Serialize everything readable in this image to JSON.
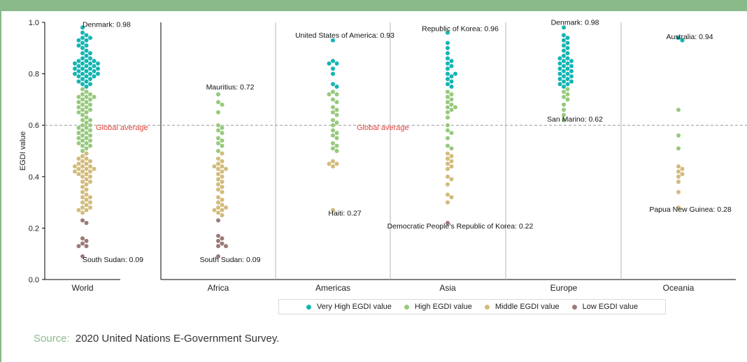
{
  "colors": {
    "frame": "#8aba8a",
    "very_high": "#12b5b3",
    "high": "#97c97d",
    "middle": "#d2bb7c",
    "low": "#9b7a78",
    "global_line": "#999999",
    "global_text": "#e0443e",
    "source_label": "#8aba8a"
  },
  "source": {
    "label": "Source:",
    "text": "2020 United Nations E-Government Survey."
  },
  "chart_data": {
    "type": "scatter",
    "subtype": "beeswarm",
    "ylabel": "EGDI value",
    "ylim": [
      0,
      1
    ],
    "yticks": [
      "0.0",
      "0.2",
      "0.4",
      "0.6",
      "0.8",
      "1.0"
    ],
    "global_average": {
      "value": 0.6,
      "label": "Global average"
    },
    "legend": [
      {
        "key": "very_high",
        "label": "Very High EGDI value"
      },
      {
        "key": "high",
        "label": "High EGDI value"
      },
      {
        "key": "middle",
        "label": "Middle EGDI value"
      },
      {
        "key": "low",
        "label": "Low EGDI value"
      }
    ],
    "groups": [
      {
        "name": "World",
        "values": [
          0.98,
          0.96,
          0.95,
          0.94,
          0.94,
          0.93,
          0.93,
          0.92,
          0.91,
          0.91,
          0.9,
          0.89,
          0.88,
          0.88,
          0.87,
          0.86,
          0.86,
          0.85,
          0.85,
          0.85,
          0.84,
          0.84,
          0.84,
          0.84,
          0.83,
          0.83,
          0.83,
          0.82,
          0.82,
          0.82,
          0.82,
          0.81,
          0.81,
          0.81,
          0.8,
          0.8,
          0.8,
          0.8,
          0.79,
          0.79,
          0.79,
          0.78,
          0.78,
          0.77,
          0.77,
          0.76,
          0.76,
          0.75,
          0.74,
          0.73,
          0.72,
          0.72,
          0.71,
          0.71,
          0.71,
          0.7,
          0.7,
          0.69,
          0.69,
          0.68,
          0.68,
          0.67,
          0.67,
          0.66,
          0.66,
          0.65,
          0.65,
          0.64,
          0.63,
          0.62,
          0.62,
          0.61,
          0.6,
          0.6,
          0.59,
          0.59,
          0.58,
          0.58,
          0.57,
          0.57,
          0.56,
          0.56,
          0.55,
          0.55,
          0.54,
          0.54,
          0.53,
          0.53,
          0.52,
          0.52,
          0.51,
          0.5,
          0.49,
          0.48,
          0.47,
          0.47,
          0.46,
          0.46,
          0.45,
          0.45,
          0.44,
          0.44,
          0.44,
          0.43,
          0.43,
          0.43,
          0.42,
          0.42,
          0.42,
          0.41,
          0.41,
          0.4,
          0.4,
          0.39,
          0.38,
          0.38,
          0.37,
          0.36,
          0.35,
          0.34,
          0.33,
          0.32,
          0.32,
          0.31,
          0.3,
          0.3,
          0.29,
          0.28,
          0.28,
          0.27,
          0.27,
          0.26,
          0.23,
          0.22,
          0.16,
          0.15,
          0.14,
          0.13,
          0.13,
          0.09
        ],
        "annotations": [
          {
            "text": "Denmark: 0.98",
            "value": 0.98,
            "side": "top"
          },
          {
            "text": "South Sudan: 0.09",
            "value": 0.09,
            "side": "bottom"
          }
        ]
      },
      {
        "name": "Africa",
        "values": [
          0.72,
          0.69,
          0.68,
          0.65,
          0.6,
          0.59,
          0.58,
          0.57,
          0.55,
          0.54,
          0.53,
          0.52,
          0.5,
          0.49,
          0.47,
          0.46,
          0.45,
          0.44,
          0.44,
          0.43,
          0.43,
          0.42,
          0.41,
          0.4,
          0.39,
          0.38,
          0.37,
          0.36,
          0.35,
          0.34,
          0.32,
          0.31,
          0.3,
          0.29,
          0.28,
          0.28,
          0.27,
          0.27,
          0.26,
          0.25,
          0.23,
          0.17,
          0.16,
          0.15,
          0.14,
          0.13,
          0.13,
          0.09
        ],
        "annotations": [
          {
            "text": "Mauritius: 0.72",
            "value": 0.72,
            "side": "top"
          },
          {
            "text": "South Sudan: 0.09",
            "value": 0.09,
            "side": "bottom"
          }
        ]
      },
      {
        "name": "Americas",
        "values": [
          0.93,
          0.85,
          0.84,
          0.84,
          0.82,
          0.8,
          0.76,
          0.75,
          0.73,
          0.72,
          0.72,
          0.7,
          0.69,
          0.67,
          0.66,
          0.65,
          0.64,
          0.62,
          0.61,
          0.6,
          0.58,
          0.57,
          0.56,
          0.55,
          0.53,
          0.52,
          0.51,
          0.5,
          0.46,
          0.45,
          0.45,
          0.44,
          0.27
        ],
        "annotations": [
          {
            "text": "United States of America: 0.93",
            "value": 0.93,
            "side": "top"
          },
          {
            "text": "Haiti: 0.27",
            "value": 0.27,
            "side": "bottom"
          }
        ]
      },
      {
        "name": "Asia",
        "values": [
          0.96,
          0.92,
          0.9,
          0.88,
          0.86,
          0.85,
          0.84,
          0.83,
          0.82,
          0.8,
          0.8,
          0.79,
          0.78,
          0.77,
          0.76,
          0.75,
          0.73,
          0.72,
          0.71,
          0.7,
          0.69,
          0.68,
          0.67,
          0.67,
          0.66,
          0.65,
          0.63,
          0.6,
          0.58,
          0.57,
          0.55,
          0.52,
          0.51,
          0.49,
          0.48,
          0.47,
          0.46,
          0.45,
          0.44,
          0.43,
          0.4,
          0.39,
          0.37,
          0.33,
          0.32,
          0.3,
          0.22
        ],
        "annotations": [
          {
            "text": "Republic of Korea: 0.96",
            "value": 0.96,
            "side": "top"
          },
          {
            "text": "Democratic People’s Republic of Korea: 0.22",
            "value": 0.22,
            "side": "bottom"
          }
        ]
      },
      {
        "name": "Europe",
        "values": [
          0.98,
          0.95,
          0.94,
          0.93,
          0.92,
          0.91,
          0.9,
          0.89,
          0.88,
          0.87,
          0.86,
          0.86,
          0.85,
          0.85,
          0.84,
          0.84,
          0.83,
          0.83,
          0.82,
          0.82,
          0.81,
          0.81,
          0.8,
          0.8,
          0.79,
          0.79,
          0.78,
          0.78,
          0.77,
          0.77,
          0.76,
          0.76,
          0.75,
          0.74,
          0.73,
          0.72,
          0.71,
          0.7,
          0.68,
          0.66,
          0.64,
          0.62
        ],
        "annotations": [
          {
            "text": "Denmark: 0.98",
            "value": 0.98,
            "side": "top"
          },
          {
            "text": "San Marino: 0.62",
            "value": 0.62,
            "side": "bottom"
          }
        ]
      },
      {
        "name": "Oceania",
        "values": [
          0.94,
          0.93,
          0.66,
          0.56,
          0.51,
          0.44,
          0.43,
          0.42,
          0.41,
          0.4,
          0.38,
          0.34,
          0.28
        ],
        "annotations": [
          {
            "text": "Australia: 0.94",
            "value": 0.94,
            "side": "top"
          },
          {
            "text": "Papua New Guinea: 0.28",
            "value": 0.28,
            "side": "bottom"
          }
        ]
      }
    ]
  }
}
